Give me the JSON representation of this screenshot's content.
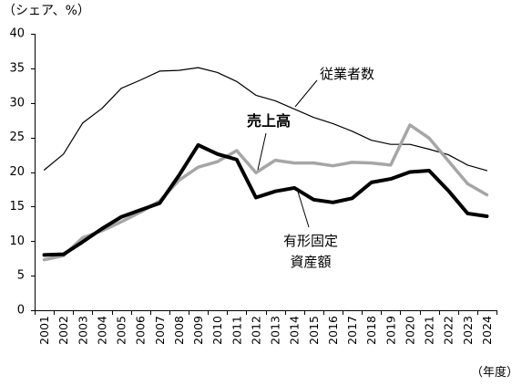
{
  "chart_data": {
    "type": "line",
    "ylabel": "（シェア、%）",
    "xlabel": "（年度）",
    "categories": [
      "2001",
      "2002",
      "2003",
      "2004",
      "2005",
      "2006",
      "2007",
      "2008",
      "2009",
      "2010",
      "2011",
      "2012",
      "2013",
      "2014",
      "2015",
      "2016",
      "2017",
      "2018",
      "2019",
      "2020",
      "2021",
      "2022",
      "2023",
      "2024"
    ],
    "ylim": [
      0,
      40
    ],
    "yticks": [
      0,
      5,
      10,
      15,
      20,
      25,
      30,
      35,
      40
    ],
    "grid": false,
    "series": [
      {
        "name": "従業者数",
        "color": "#000000",
        "values": [
          20.3,
          22.6,
          27.1,
          29.2,
          32.1,
          33.3,
          34.6,
          34.7,
          35.1,
          34.4,
          33.1,
          31.1,
          30.3,
          29.1,
          27.9,
          27.0,
          25.9,
          24.6,
          24.0,
          24.0,
          23.3,
          22.5,
          21.0,
          20.2
        ]
      },
      {
        "name": "売上高",
        "color": "#a6a6a6",
        "values": [
          7.3,
          7.9,
          10.5,
          11.5,
          12.8,
          14.2,
          15.8,
          18.8,
          20.7,
          21.5,
          23.1,
          19.9,
          21.7,
          21.3,
          21.3,
          20.9,
          21.4,
          21.3,
          21.0,
          26.8,
          24.9,
          21.6,
          18.3,
          16.7
        ]
      },
      {
        "name": "有形固定\n資産額",
        "color": "#000000",
        "values": [
          8.0,
          8.1,
          9.9,
          11.8,
          13.5,
          14.5,
          15.5,
          19.5,
          23.9,
          22.6,
          21.8,
          16.3,
          17.2,
          17.7,
          16.0,
          15.6,
          16.2,
          18.5,
          19.0,
          20.0,
          20.2,
          17.3,
          14.0,
          13.6
        ]
      }
    ]
  }
}
